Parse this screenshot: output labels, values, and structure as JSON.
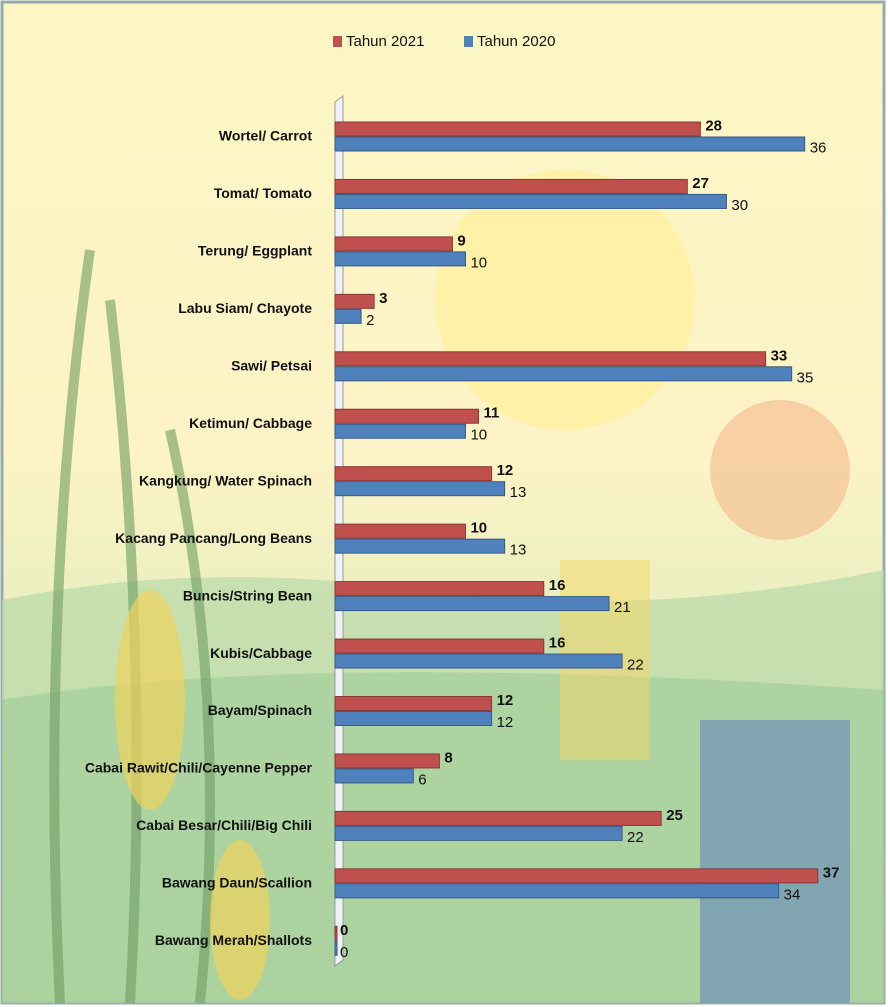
{
  "chart_data": {
    "type": "hbar",
    "categories": [
      "Wortel/ Carrot",
      "Tomat/ Tomato",
      "Terung/ Eggplant",
      "Labu Siam/ Chayote",
      "Sawi/ Petsai",
      "Ketimun/ Cabbage",
      "Kangkung/ Water Spinach",
      "Kacang Pancang/Long Beans",
      "Buncis/String Bean",
      "Kubis/Cabbage",
      "Bayam/Spinach",
      "Cabai Rawit/Chili/Cayenne Pepper",
      "Cabai Besar/Chili/Big Chili",
      "Bawang Daun/Scallion",
      "Bawang Merah/Shallots"
    ],
    "series": [
      {
        "name": "Tahun 2021",
        "color": "#c0504d",
        "values": [
          28,
          27,
          9,
          3,
          33,
          11,
          12,
          10,
          16,
          16,
          12,
          8,
          25,
          37,
          0
        ]
      },
      {
        "name": "Tahun 2020",
        "color": "#4f81bd",
        "values": [
          36,
          30,
          10,
          2,
          35,
          10,
          13,
          13,
          21,
          22,
          12,
          6,
          22,
          34,
          0
        ]
      }
    ],
    "xlim": [
      0,
      42
    ]
  }
}
